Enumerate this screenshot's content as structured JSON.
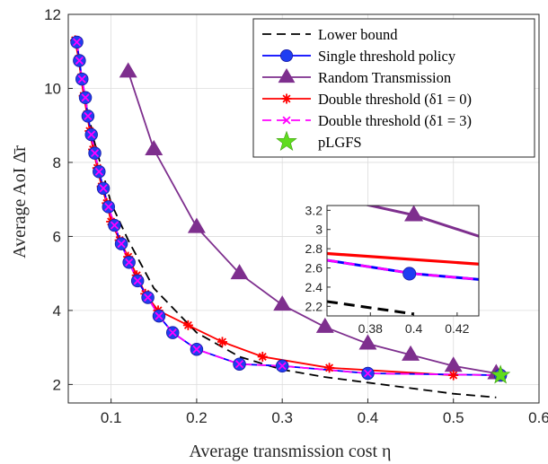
{
  "chart_data": [
    {
      "type": "line",
      "xlabel": "Average transmission cost η",
      "ylabel": "Average AoI Δ̄r",
      "xlim": [
        0.05,
        0.6
      ],
      "ylim": [
        1.5,
        12
      ],
      "xticks": [
        0.1,
        0.2,
        0.3,
        0.4,
        0.5,
        0.6
      ],
      "yticks": [
        2,
        4,
        6,
        8,
        10,
        12
      ],
      "xtick_labels": [
        "0.1",
        "0.2",
        "0.3",
        "0.4",
        "0.5",
        "0.6"
      ],
      "ytick_labels": [
        "2",
        "4",
        "6",
        "8",
        "10",
        "12"
      ],
      "grid": true,
      "legend_position": "top-right",
      "series": [
        {
          "name": "Lower bound",
          "style": "dashed",
          "marker": "none",
          "color": "#000000",
          "x": [
            0.058,
            0.07,
            0.08,
            0.1,
            0.12,
            0.15,
            0.2,
            0.25,
            0.3,
            0.35,
            0.4,
            0.45,
            0.5,
            0.55
          ],
          "y": [
            11.3,
            9.7,
            8.6,
            6.9,
            5.9,
            4.6,
            3.4,
            2.75,
            2.4,
            2.2,
            2.05,
            1.9,
            1.75,
            1.65
          ]
        },
        {
          "name": "Single threshold policy",
          "style": "solid",
          "marker": "circle",
          "color": "#0000ff",
          "marker_color": "#1f3df2",
          "x": [
            0.06,
            0.063,
            0.066,
            0.07,
            0.073,
            0.077,
            0.081,
            0.086,
            0.091,
            0.097,
            0.104,
            0.112,
            0.121,
            0.131,
            0.143,
            0.156,
            0.172,
            0.2,
            0.25,
            0.3,
            0.4,
            0.555
          ],
          "y": [
            11.25,
            10.75,
            10.25,
            9.75,
            9.25,
            8.75,
            8.25,
            7.75,
            7.3,
            6.8,
            6.3,
            5.8,
            5.3,
            4.8,
            4.35,
            3.85,
            3.4,
            2.95,
            2.55,
            2.5,
            2.3,
            2.25
          ]
        },
        {
          "name": "Random Transmission",
          "style": "solid",
          "marker": "triangle",
          "color": "#7e2f8e",
          "x": [
            0.12,
            0.15,
            0.2,
            0.25,
            0.3,
            0.35,
            0.4,
            0.45,
            0.5,
            0.55
          ],
          "y": [
            10.45,
            8.35,
            6.25,
            5.0,
            4.15,
            3.55,
            3.1,
            2.8,
            2.5,
            2.3
          ]
        },
        {
          "name": "Double threshold (δ1 = 0)",
          "style": "solid",
          "marker": "asterisk",
          "color": "#ff0000",
          "x": [
            0.058,
            0.062,
            0.065,
            0.068,
            0.072,
            0.075,
            0.079,
            0.084,
            0.089,
            0.095,
            0.1,
            0.11,
            0.12,
            0.13,
            0.14,
            0.155,
            0.19,
            0.23,
            0.277,
            0.355,
            0.5
          ],
          "y": [
            11.3,
            10.8,
            10.3,
            9.8,
            9.3,
            8.85,
            8.35,
            7.85,
            7.35,
            6.9,
            6.4,
            5.9,
            5.45,
            4.95,
            4.45,
            4.0,
            3.6,
            3.15,
            2.75,
            2.45,
            2.25
          ]
        },
        {
          "name": "Double threshold (δ1 = 3)",
          "style": "dashed",
          "marker": "cross",
          "color": "#ff00ff",
          "x": [
            0.06,
            0.063,
            0.066,
            0.07,
            0.073,
            0.077,
            0.081,
            0.086,
            0.091,
            0.097,
            0.104,
            0.112,
            0.121,
            0.131,
            0.143,
            0.156,
            0.172,
            0.2,
            0.25,
            0.3,
            0.4,
            0.555
          ],
          "y": [
            11.25,
            10.75,
            10.25,
            9.75,
            9.25,
            8.75,
            8.25,
            7.75,
            7.3,
            6.8,
            6.3,
            5.8,
            5.3,
            4.8,
            4.35,
            3.85,
            3.4,
            2.95,
            2.55,
            2.5,
            2.3,
            2.25
          ]
        },
        {
          "name": "pLGFS",
          "style": "none",
          "marker": "star",
          "color": "#5fdc1e",
          "x": [
            0.555
          ],
          "y": [
            2.25
          ]
        }
      ]
    },
    {
      "type": "line",
      "xlim": [
        0.36,
        0.43
      ],
      "ylim": [
        2.1,
        3.25
      ],
      "xticks": [
        0.38,
        0.4,
        0.42
      ],
      "yticks": [
        2.2,
        2.4,
        2.6,
        2.8,
        3,
        3.2
      ],
      "xtick_labels": [
        "0.38",
        "0.4",
        "0.42"
      ],
      "ytick_labels": [
        "2.2",
        "2.4",
        "2.6",
        "2.8",
        "3",
        "3.2"
      ],
      "grid": false,
      "series": [
        {
          "ref": "Random Transmission",
          "color": "#7e2f8e",
          "x": [
            0.36,
            0.4,
            0.43
          ],
          "y": [
            3.35,
            3.15,
            2.93
          ]
        },
        {
          "ref": "Double threshold (δ1 = 0)",
          "color": "#ff0000",
          "x": [
            0.36,
            0.43
          ],
          "y": [
            2.75,
            2.64
          ]
        },
        {
          "ref": "Single threshold policy",
          "color": "#0000ff",
          "x": [
            0.36,
            0.4,
            0.43
          ],
          "y": [
            2.68,
            2.54,
            2.48
          ]
        },
        {
          "ref": "Double threshold (δ1 = 3)",
          "color": "#ff00ff",
          "x": [
            0.36,
            0.4,
            0.43
          ],
          "y": [
            2.68,
            2.54,
            2.48
          ]
        },
        {
          "ref": "Lower bound",
          "color": "#000000",
          "x": [
            0.36,
            0.4
          ],
          "y": [
            2.25,
            2.12
          ]
        }
      ],
      "markers": [
        {
          "ref": "Random Transmission",
          "marker": "triangle",
          "x": 0.4,
          "y": 3.15
        },
        {
          "ref": "Single threshold policy",
          "marker": "circle",
          "x": 0.398,
          "y": 2.54
        }
      ]
    }
  ]
}
